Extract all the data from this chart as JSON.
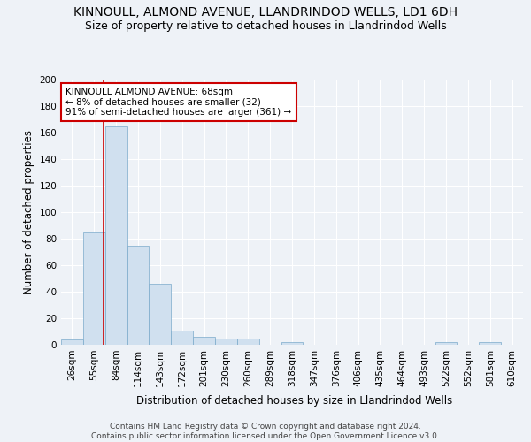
{
  "title": "KINNOULL, ALMOND AVENUE, LLANDRINDOD WELLS, LD1 6DH",
  "subtitle": "Size of property relative to detached houses in Llandrindod Wells",
  "xlabel": "Distribution of detached houses by size in Llandrindod Wells",
  "ylabel": "Number of detached properties",
  "footnote": "Contains HM Land Registry data © Crown copyright and database right 2024.\nContains public sector information licensed under the Open Government Licence v3.0.",
  "categories": [
    "26sqm",
    "55sqm",
    "84sqm",
    "114sqm",
    "143sqm",
    "172sqm",
    "201sqm",
    "230sqm",
    "260sqm",
    "289sqm",
    "318sqm",
    "347sqm",
    "376sqm",
    "406sqm",
    "435sqm",
    "464sqm",
    "493sqm",
    "522sqm",
    "552sqm",
    "581sqm",
    "610sqm"
  ],
  "values": [
    4,
    85,
    165,
    75,
    46,
    11,
    6,
    5,
    5,
    0,
    2,
    0,
    0,
    0,
    0,
    0,
    0,
    2,
    0,
    2,
    0
  ],
  "bar_color": "#d0e0ef",
  "bar_edge_color": "#7aaacb",
  "annotation_text": "KINNOULL ALMOND AVENUE: 68sqm\n← 8% of detached houses are smaller (32)\n91% of semi-detached houses are larger (361) →",
  "annotation_box_color": "#ffffff",
  "annotation_box_edge": "#cc0000",
  "ylim": [
    0,
    200
  ],
  "yticks": [
    0,
    20,
    40,
    60,
    80,
    100,
    120,
    140,
    160,
    180,
    200
  ],
  "background_color": "#eef2f7",
  "grid_color": "#ffffff",
  "title_fontsize": 10,
  "subtitle_fontsize": 9,
  "xlabel_fontsize": 8.5,
  "ylabel_fontsize": 8.5,
  "tick_fontsize": 7.5,
  "annotation_fontsize": 7.5,
  "footnote_fontsize": 6.5
}
